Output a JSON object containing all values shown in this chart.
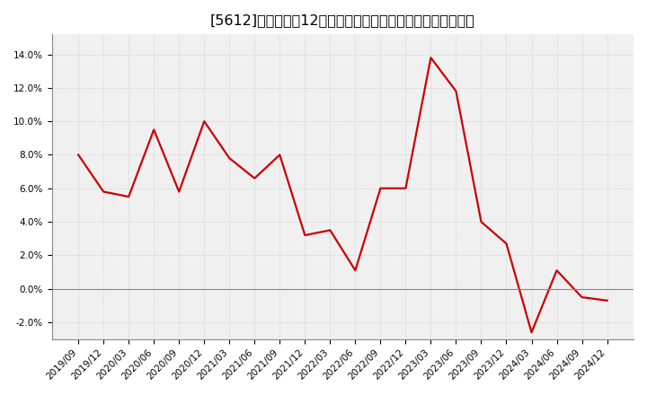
{
  "title": "[5612]　売上高の12か月移動合計の対前年同期増減率の推移",
  "x_labels": [
    "2019/09",
    "2019/12",
    "2020/03",
    "2020/06",
    "2020/09",
    "2020/12",
    "2021/03",
    "2021/06",
    "2021/09",
    "2021/12",
    "2022/03",
    "2022/06",
    "2022/09",
    "2022/12",
    "2023/03",
    "2023/06",
    "2023/09",
    "2023/12",
    "2024/03",
    "2024/06",
    "2024/09",
    "2024/12"
  ],
  "values": [
    0.08,
    0.058,
    0.055,
    0.095,
    0.058,
    0.1,
    0.078,
    0.066,
    0.08,
    0.032,
    0.035,
    0.011,
    0.06,
    0.06,
    0.138,
    0.118,
    0.04,
    0.027,
    -0.026,
    0.011,
    -0.005,
    -0.007
  ],
  "line_color": "#cc0000",
  "line_width": 1.6,
  "ylim": [
    -0.03,
    0.152
  ],
  "yticks": [
    -0.02,
    0.0,
    0.02,
    0.04,
    0.06,
    0.08,
    0.1,
    0.12,
    0.14
  ],
  "background_color": "#ffffff",
  "plot_bg_color": "#f0f0f0",
  "grid_color": "#bbbbbb",
  "zero_line_color": "#888888",
  "spine_color": "#888888",
  "title_fontsize": 11.5,
  "tick_fontsize": 7.5
}
